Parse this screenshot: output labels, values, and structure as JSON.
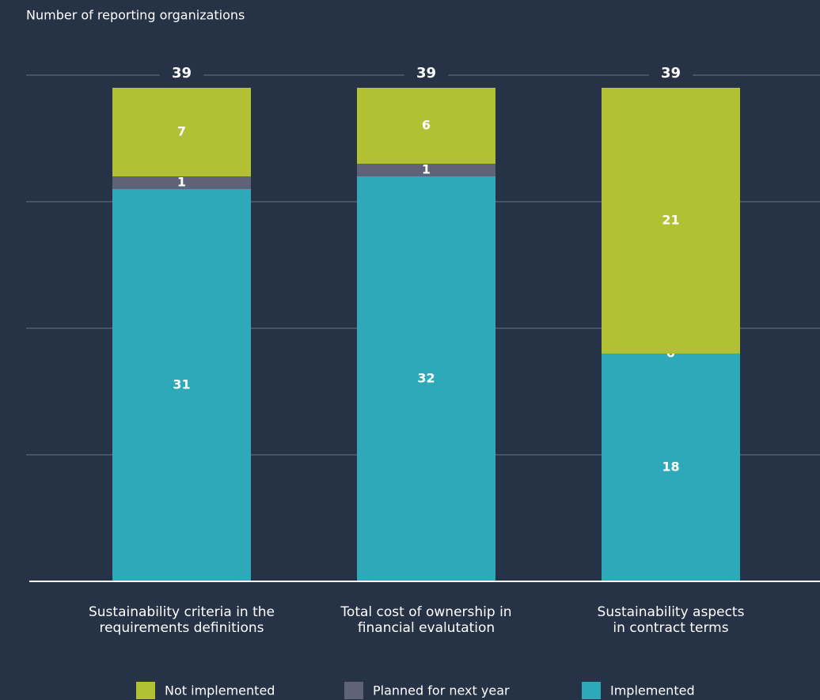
{
  "chart_data": {
    "type": "stacked_bar",
    "y_axis_label": "Number of reporting organizations",
    "categories": [
      "Sustainability criteria in the\nrequirements definitions",
      "Total cost of ownership in\nfinancial evalutation",
      "Sustainability aspects\nin contract terms"
    ],
    "series": [
      {
        "name": "Implemented",
        "color": "#2ea9ba",
        "values": [
          31,
          32,
          18
        ]
      },
      {
        "name": "Planned for next year",
        "color": "#5e6378",
        "values": [
          1,
          1,
          0
        ]
      },
      {
        "name": "Not implemented",
        "color": "#b2c034",
        "values": [
          7,
          6,
          21
        ]
      }
    ],
    "totals": [
      39,
      39,
      39
    ],
    "ylim": [
      0,
      40
    ],
    "yticks": [
      10,
      20,
      30,
      40
    ],
    "grid": true
  }
}
